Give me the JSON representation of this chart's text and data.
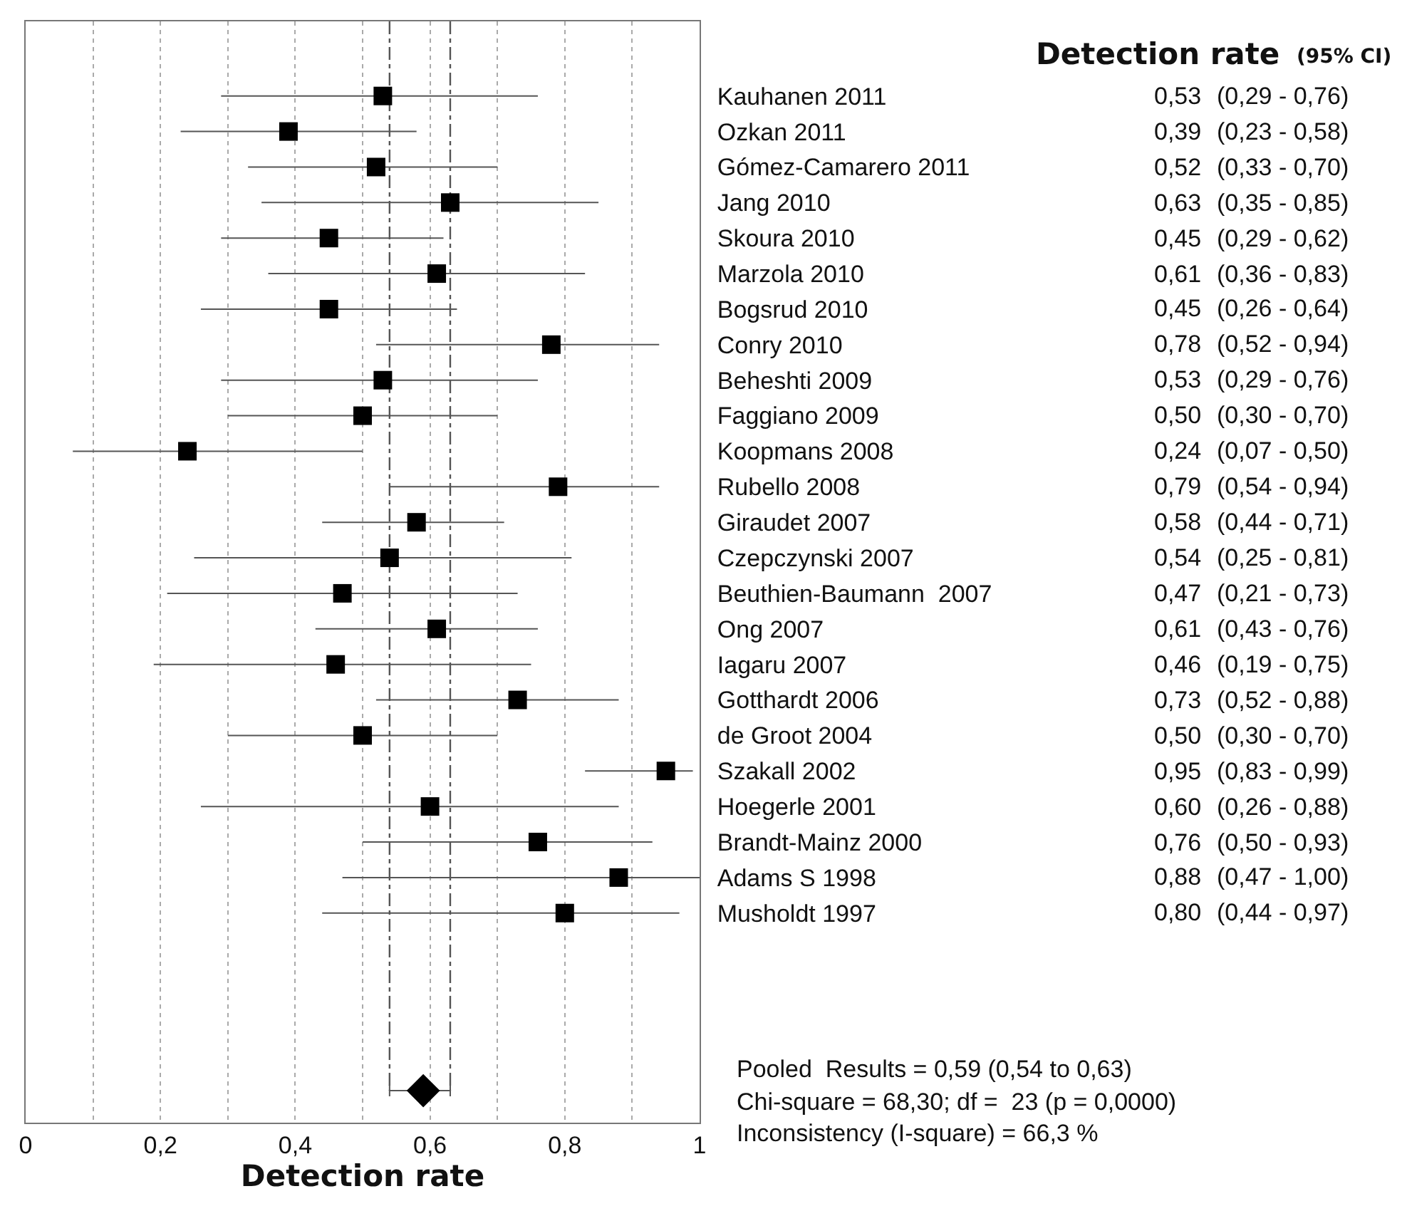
{
  "chart_data": {
    "type": "scatter",
    "orientation": "horizontal",
    "title": "Detection rate",
    "subtitle": "(95% CI)",
    "xlabel": "Detection rate",
    "categories": [
      "Kauhanen 2011",
      "Ozkan 2011",
      "Gómez-Camarero 2011",
      "Jang 2010",
      "Skoura 2010",
      "Marzola 2010",
      "Bogsrud 2010",
      "Conry 2010",
      "Beheshti 2009",
      "Faggiano 2009",
      "Koopmans 2008",
      "Rubello 2008",
      "Giraudet 2007",
      "Czepczynski 2007",
      "Beuthien-Baumann  2007",
      "Ong 2007",
      "Iagaru 2007",
      "Gotthardt 2006",
      "de Groot 2004",
      "Szakall 2002",
      "Hoegerle 2001",
      "Brandt-Mainz 2000",
      "Adams S 1998",
      "Musholdt 1997",
      null,
      null,
      null,
      null,
      null
    ],
    "series": [
      {
        "marker": "square",
        "color": "#000000",
        "values": [
          0.53,
          0.39,
          0.52,
          0.63,
          0.45,
          0.61,
          0.45,
          0.78,
          0.53,
          0.5,
          0.24,
          0.79,
          0.58,
          0.54,
          0.47,
          0.61,
          0.46,
          0.73,
          0.5,
          0.95,
          0.6,
          0.76,
          0.88,
          0.8,
          null,
          null,
          null,
          null,
          null
        ],
        "errors": [
          [
            0.29,
            0.76
          ],
          [
            0.23,
            0.58
          ],
          [
            0.33,
            0.7
          ],
          [
            0.35,
            0.85
          ],
          [
            0.29,
            0.62
          ],
          [
            0.36,
            0.83
          ],
          [
            0.26,
            0.64
          ],
          [
            0.52,
            0.94
          ],
          [
            0.29,
            0.76
          ],
          [
            0.3,
            0.7
          ],
          [
            0.07,
            0.5
          ],
          [
            0.54,
            0.94
          ],
          [
            0.44,
            0.71
          ],
          [
            0.25,
            0.81
          ],
          [
            0.21,
            0.73
          ],
          [
            0.43,
            0.76
          ],
          [
            0.19,
            0.75
          ],
          [
            0.52,
            0.88
          ],
          [
            0.3,
            0.7
          ],
          [
            0.83,
            0.99
          ],
          [
            0.26,
            0.88
          ],
          [
            0.5,
            0.93
          ],
          [
            0.47,
            1.0
          ],
          [
            0.44,
            0.97
          ],
          null,
          null,
          null,
          null,
          null
        ],
        "value_labels": [
          "0,53 (0,29 - 0,76)",
          "0,39 (0,23 - 0,58)",
          "0,52 (0,33 - 0,70)",
          "0,63 (0,35 - 0,85)",
          "0,45 (0,29 - 0,62)",
          "0,61 (0,36 - 0,83)",
          "0,45 (0,26 - 0,64)",
          "0,78 (0,52 - 0,94)",
          "0,53 (0,29 - 0,76)",
          "0,50 (0,30 - 0,70)",
          "0,24 (0,07 - 0,50)",
          "0,79 (0,54 - 0,94)",
          "0,58 (0,44 - 0,71)",
          "0,54 (0,25 - 0,81)",
          "0,47 (0,21 - 0,73)",
          "0,61 (0,43 - 0,76)",
          "0,46 (0,19 - 0,75)",
          "0,73 (0,52 - 0,88)",
          "0,50 (0,30 - 0,70)",
          "0,95 (0,83 - 0,99)",
          "0,60 (0,26 - 0,88)",
          "0,76 (0,50 - 0,93)",
          "0,88 (0,47 - 1,00)",
          "0,80 (0,44 - 0,97)",
          null,
          null,
          null,
          null,
          null
        ]
      },
      {
        "marker": "diamond",
        "color": "#000000",
        "values": [
          null,
          null,
          null,
          null,
          null,
          null,
          null,
          null,
          null,
          null,
          null,
          null,
          null,
          null,
          null,
          null,
          null,
          null,
          null,
          null,
          null,
          null,
          null,
          null,
          null,
          null,
          null,
          null,
          0.59
        ],
        "errors": [
          null,
          null,
          null,
          null,
          null,
          null,
          null,
          null,
          null,
          null,
          null,
          null,
          null,
          null,
          null,
          null,
          null,
          null,
          null,
          null,
          null,
          null,
          null,
          null,
          null,
          null,
          null,
          null,
          [
            0.54,
            0.63
          ]
        ]
      }
    ],
    "xlim": [
      0,
      1
    ],
    "xticks": [
      0,
      {
        "value": 0.1,
        "label": null
      },
      {
        "value": 0.2,
        "label": "0,2"
      },
      {
        "value": 0.3,
        "label": null
      },
      {
        "value": 0.4,
        "label": "0,4"
      },
      {
        "value": 0.5,
        "label": null
      },
      {
        "value": 0.6,
        "label": "0,6"
      },
      {
        "value": 0.7,
        "label": null
      },
      {
        "value": 0.8,
        "label": "0,8"
      },
      {
        "value": 0.9,
        "label": null
      },
      1
    ],
    "grid": "x",
    "ref_lines": [
      {
        "axis": "x",
        "value": 0.54,
        "line_style": "dashed",
        "color": "#555555"
      },
      {
        "axis": "x",
        "value": 0.63,
        "line_style": "dashed",
        "color": "#555555"
      }
    ],
    "annotations": [
      "Pooled  Results = 0,59 (0,54 to 0,63)",
      "Chi-square = 68,30; df =  23 (p = 0,0000)",
      "Inconsistency (I-square) = 66,3 %"
    ]
  }
}
